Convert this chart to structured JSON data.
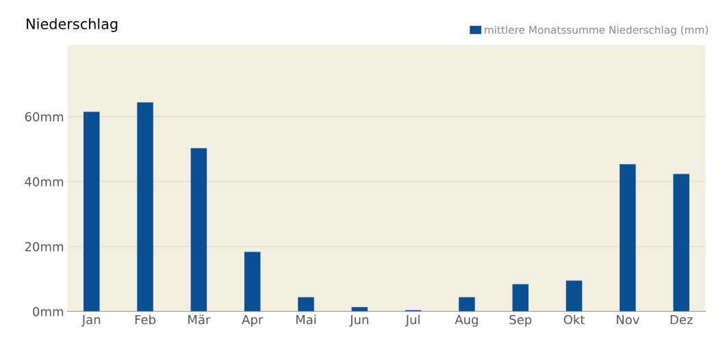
{
  "chart_data": {
    "type": "bar",
    "title": "Niederschlag",
    "categories": [
      "Jan",
      "Feb",
      "Mär",
      "Apr",
      "Mai",
      "Jun",
      "Jul",
      "Aug",
      "Sep",
      "Okt",
      "Nov",
      "Dez"
    ],
    "series": [
      {
        "name": "mittlere Monatssumme Niederschlag (mm)",
        "color": "#0b4f94",
        "values": [
          61.5,
          64.4,
          50.3,
          18.3,
          4.4,
          1.3,
          0.4,
          4.4,
          8.4,
          9.5,
          45.3,
          42.3
        ]
      }
    ],
    "ylim": [
      0,
      82
    ],
    "yticks": [
      {
        "value": 0,
        "label": "0mm"
      },
      {
        "value": 20,
        "label": "20mm"
      },
      {
        "value": 40,
        "label": "40mm"
      },
      {
        "value": 60,
        "label": "60mm"
      }
    ],
    "grid": "y",
    "legend": "top right"
  }
}
